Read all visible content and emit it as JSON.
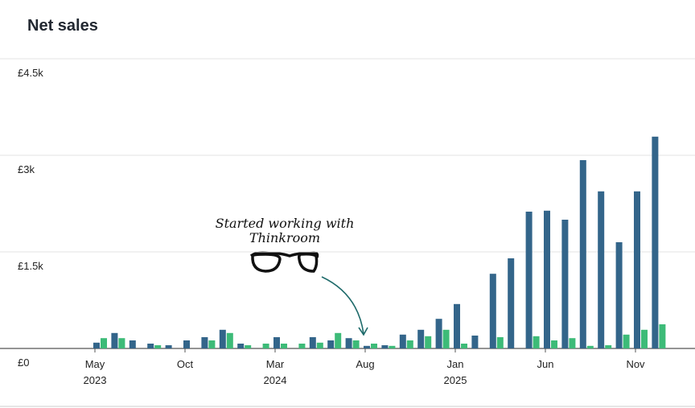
{
  "chart_data": {
    "type": "bar",
    "title": "Net sales",
    "categories": [
      "May 2023",
      null,
      null,
      null,
      null,
      "Oct",
      null,
      null,
      null,
      null,
      "Mar 2024",
      null,
      null,
      null,
      null,
      "Aug",
      null,
      null,
      null,
      null,
      "Jan 2025",
      null,
      null,
      null,
      null,
      "Jun",
      null,
      null,
      null,
      null,
      "Nov",
      null
    ],
    "series": [
      {
        "color": "#33658a",
        "values": [
          90,
          240,
          125,
          75,
          50,
          125,
          175,
          290,
          75,
          0,
          175,
          0,
          175,
          125,
          160,
          40,
          50,
          215,
          290,
          460,
          690,
          200,
          1160,
          1400,
          2125,
          2140,
          2000,
          2925,
          2440,
          1650,
          2440,
          3290
        ]
      },
      {
        "color": "#3dbb78",
        "values": [
          160,
          160,
          0,
          50,
          0,
          0,
          125,
          240,
          50,
          75,
          75,
          75,
          90,
          240,
          125,
          75,
          40,
          125,
          190,
          290,
          75,
          0,
          175,
          0,
          190,
          125,
          160,
          40,
          50,
          215,
          290,
          375
        ]
      }
    ],
    "ylim": [
      0,
      4500
    ],
    "yticks": [
      {
        "value": 0,
        "label": "£0"
      },
      {
        "value": 1500,
        "label": "£1.5k"
      },
      {
        "value": 3000,
        "label": "£3k"
      },
      {
        "value": 4500,
        "label": "£4.5k"
      }
    ],
    "grid": true,
    "annotation": [
      "Started working with",
      "Thinkroom"
    ]
  }
}
